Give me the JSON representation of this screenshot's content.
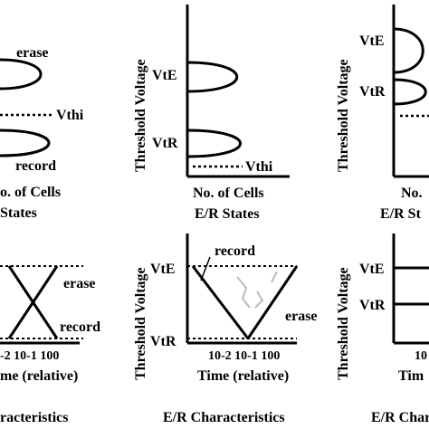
{
  "panels": {
    "top_left": {
      "curve_upper": "erase",
      "threshold": "Vthi",
      "curve_lower": "record",
      "xlabel": "o. of Cells",
      "caption": "States"
    },
    "top_middle": {
      "ylabel": "Threshold Voltage",
      "tick_high": "VtE",
      "tick_low": "VtR",
      "threshold": "Vthi",
      "xlabel": "No. of Cells",
      "caption": "E/R States"
    },
    "top_right": {
      "ylabel": "Threshold Voltage",
      "tick_high": "VtE",
      "tick_low": "VtR",
      "xlabel": "No.",
      "caption": "E/R St"
    },
    "bottom_left": {
      "line_erase": "erase",
      "line_record": "record",
      "xticks": "-2 10-1 100",
      "xlabel": "me (relative)",
      "caption": "racteristics"
    },
    "bottom_middle": {
      "ylabel": "Threshold Voltage",
      "tick_high": "VtE",
      "tick_low": "VtR",
      "line_record": "record",
      "line_erase": "erase",
      "xticks": "10-2 10-1 100",
      "xlabel": "Time (relative)",
      "caption": "E/R Characteristics"
    },
    "bottom_right": {
      "ylabel": "Threshold Voltage",
      "tick_high": "VtE",
      "tick_low": "VtR",
      "xticks": "10",
      "xlabel": "Tim",
      "caption": "E/R Characte"
    }
  }
}
